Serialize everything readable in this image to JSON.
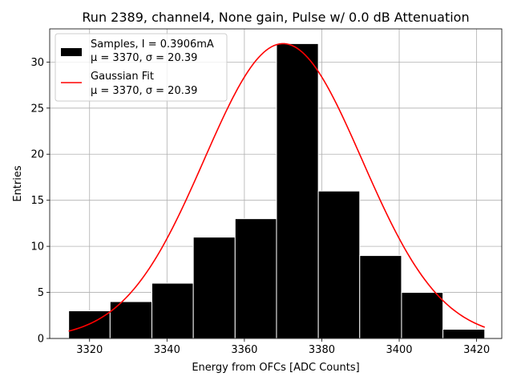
{
  "chart_data": {
    "type": "bar",
    "title": "Run 2389, channel4, None gain, Pulse w/ 0.0 dB Attenuation",
    "xlabel": "Energy from OFCs [ADC Counts]",
    "ylabel": "Entries",
    "xlim": [
      3309.7,
      3426.5
    ],
    "ylim": [
      0,
      33.6
    ],
    "xticks": [
      3320,
      3340,
      3360,
      3380,
      3400,
      3420
    ],
    "yticks": [
      0,
      5,
      10,
      15,
      20,
      25,
      30
    ],
    "grid": true,
    "legend_position": "upper-left",
    "histogram": {
      "bin_edges": [
        3314.6,
        3325.3,
        3336.1,
        3346.8,
        3357.6,
        3368.3,
        3379.1,
        3389.8,
        3400.6,
        3411.3,
        3422.1
      ],
      "counts": [
        3,
        4,
        6,
        11,
        13,
        32,
        16,
        9,
        5,
        1
      ],
      "color": "#000000"
    },
    "fit": {
      "mu": 3370,
      "sigma": 20.39,
      "amplitude": 32,
      "x_range": [
        3314.6,
        3422.1
      ],
      "color": "#ff0000"
    },
    "legend": [
      {
        "line1": "Samples, I = 0.3906mA",
        "line2": "μ = 3370, σ = 20.39",
        "marker": "patch",
        "color": "#000000"
      },
      {
        "line1": "Gaussian Fit",
        "line2": "μ = 3370, σ = 20.39",
        "marker": "line",
        "color": "#ff0000"
      }
    ]
  }
}
